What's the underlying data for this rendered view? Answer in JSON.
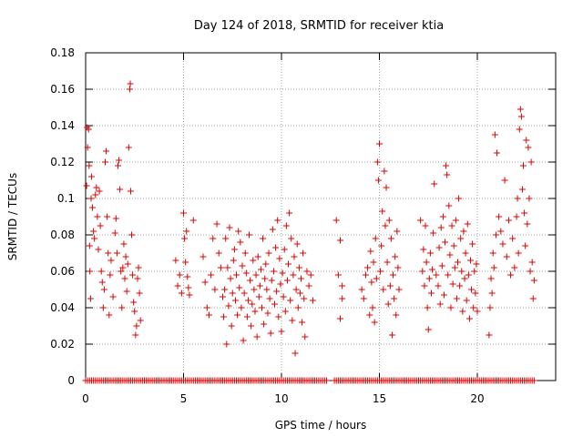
{
  "chart_data": {
    "type": "scatter",
    "title": "Day 124 of 2018, SRMTID for receiver ktia",
    "xlabel": "GPS time / hours",
    "ylabel": "SRMTID / TECUs",
    "xlim": [
      0,
      24
    ],
    "ylim": [
      0,
      0.18
    ],
    "xticks": [
      0,
      5,
      10,
      15,
      20
    ],
    "xtick_labels": [
      "0",
      "5",
      "10",
      "15",
      "20"
    ],
    "yticks": [
      0,
      0.02,
      0.04,
      0.06,
      0.08,
      0.1,
      0.12,
      0.14,
      0.16,
      0.18
    ],
    "ytick_labels": [
      "0",
      "0.02",
      "0.04",
      "0.06",
      "0.08",
      "0.1",
      "0.12",
      "0.14",
      "0.16",
      "0.18"
    ],
    "grid": true,
    "marker": "+",
    "color": "#dd0000",
    "series": [
      {
        "name": "SRMTID",
        "points": [
          [
            0.05,
            0.107
          ],
          [
            0.08,
            0.139
          ],
          [
            0.1,
            0.128
          ],
          [
            0.15,
            0.138
          ],
          [
            0.18,
            0.118
          ],
          [
            0.2,
            0.074
          ],
          [
            0.22,
            0.06
          ],
          [
            0.25,
            0.045
          ],
          [
            0.28,
            0.1
          ],
          [
            0.3,
            0.112
          ],
          [
            0.35,
            0.095
          ],
          [
            0.4,
            0.082
          ],
          [
            0.45,
            0.078
          ],
          [
            0.5,
            0.102
          ],
          [
            0.55,
            0.106
          ],
          [
            0.6,
            0.09
          ],
          [
            0.65,
            0.072
          ],
          [
            0.7,
            0.104
          ],
          [
            0.75,
            0.085
          ],
          [
            0.8,
            0.06
          ],
          [
            0.85,
            0.054
          ],
          [
            0.9,
            0.04
          ],
          [
            0.95,
            0.05
          ],
          [
            1.0,
            0.12
          ],
          [
            1.05,
            0.126
          ],
          [
            1.1,
            0.09
          ],
          [
            1.15,
            0.07
          ],
          [
            1.2,
            0.036
          ],
          [
            1.25,
            0.058
          ],
          [
            1.3,
            0.066
          ],
          [
            1.4,
            0.046
          ],
          [
            1.5,
            0.081
          ],
          [
            1.55,
            0.089
          ],
          [
            1.6,
            0.07
          ],
          [
            1.65,
            0.118
          ],
          [
            1.7,
            0.121
          ],
          [
            1.75,
            0.105
          ],
          [
            1.8,
            0.06
          ],
          [
            1.85,
            0.04
          ],
          [
            1.9,
            0.062
          ],
          [
            1.95,
            0.075
          ],
          [
            2.0,
            0.056
          ],
          [
            2.05,
            0.068
          ],
          [
            2.1,
            0.049
          ],
          [
            2.15,
            0.064
          ],
          [
            2.2,
            0.128
          ],
          [
            2.25,
            0.16
          ],
          [
            2.28,
            0.163
          ],
          [
            2.3,
            0.104
          ],
          [
            2.35,
            0.08
          ],
          [
            2.4,
            0.058
          ],
          [
            2.45,
            0.043
          ],
          [
            2.5,
            0.038
          ],
          [
            2.55,
            0.025
          ],
          [
            2.6,
            0.03
          ],
          [
            2.65,
            0.056
          ],
          [
            2.7,
            0.062
          ],
          [
            2.75,
            0.048
          ],
          [
            2.8,
            0.033
          ],
          [
            4.6,
            0.066
          ],
          [
            4.7,
            0.052
          ],
          [
            4.8,
            0.058
          ],
          [
            4.9,
            0.048
          ],
          [
            5.0,
            0.092
          ],
          [
            5.05,
            0.078
          ],
          [
            5.1,
            0.065
          ],
          [
            5.15,
            0.082
          ],
          [
            5.2,
            0.057
          ],
          [
            5.25,
            0.051
          ],
          [
            5.3,
            0.047
          ],
          [
            5.5,
            0.088
          ],
          [
            6.0,
            0.068
          ],
          [
            6.1,
            0.054
          ],
          [
            6.2,
            0.04
          ],
          [
            6.3,
            0.036
          ],
          [
            6.4,
            0.058
          ],
          [
            6.5,
            0.078
          ],
          [
            6.6,
            0.05
          ],
          [
            6.7,
            0.086
          ],
          [
            6.8,
            0.07
          ],
          [
            6.9,
            0.062
          ],
          [
            7.0,
            0.046
          ],
          [
            7.05,
            0.035
          ],
          [
            7.1,
            0.05
          ],
          [
            7.15,
            0.078
          ],
          [
            7.2,
            0.02
          ],
          [
            7.25,
            0.062
          ],
          [
            7.3,
            0.041
          ],
          [
            7.35,
            0.084
          ],
          [
            7.4,
            0.056
          ],
          [
            7.45,
            0.03
          ],
          [
            7.5,
            0.048
          ],
          [
            7.55,
            0.066
          ],
          [
            7.6,
            0.072
          ],
          [
            7.65,
            0.044
          ],
          [
            7.7,
            0.058
          ],
          [
            7.75,
            0.036
          ],
          [
            7.8,
            0.082
          ],
          [
            7.85,
            0.051
          ],
          [
            7.9,
            0.076
          ],
          [
            7.95,
            0.04
          ],
          [
            8.0,
            0.063
          ],
          [
            8.05,
            0.022
          ],
          [
            8.1,
            0.048
          ],
          [
            8.15,
            0.07
          ],
          [
            8.2,
            0.059
          ],
          [
            8.25,
            0.035
          ],
          [
            8.3,
            0.044
          ],
          [
            8.35,
            0.08
          ],
          [
            8.4,
            0.055
          ],
          [
            8.45,
            0.03
          ],
          [
            8.5,
            0.042
          ],
          [
            8.55,
            0.066
          ],
          [
            8.6,
            0.05
          ],
          [
            8.65,
            0.038
          ],
          [
            8.7,
            0.058
          ],
          [
            8.75,
            0.024
          ],
          [
            8.8,
            0.068
          ],
          [
            8.85,
            0.046
          ],
          [
            8.9,
            0.052
          ],
          [
            8.95,
            0.061
          ],
          [
            9.0,
            0.04
          ],
          [
            9.05,
            0.078
          ],
          [
            9.1,
            0.031
          ],
          [
            9.15,
            0.056
          ],
          [
            9.2,
            0.064
          ],
          [
            9.25,
            0.05
          ],
          [
            9.3,
            0.037
          ],
          [
            9.35,
            0.07
          ],
          [
            9.4,
            0.045
          ],
          [
            9.45,
            0.026
          ],
          [
            9.5,
            0.055
          ],
          [
            9.55,
            0.083
          ],
          [
            9.6,
            0.06
          ],
          [
            9.65,
            0.042
          ],
          [
            9.7,
            0.073
          ],
          [
            9.75,
            0.049
          ],
          [
            9.8,
            0.088
          ],
          [
            9.85,
            0.035
          ],
          [
            9.9,
            0.067
          ],
          [
            9.95,
            0.053
          ],
          [
            10.0,
            0.027
          ],
          [
            10.05,
            0.059
          ],
          [
            10.1,
            0.046
          ],
          [
            10.15,
            0.072
          ],
          [
            10.2,
            0.038
          ],
          [
            10.25,
            0.085
          ],
          [
            10.3,
            0.055
          ],
          [
            10.35,
            0.064
          ],
          [
            10.4,
            0.092
          ],
          [
            10.45,
            0.044
          ],
          [
            10.5,
            0.078
          ],
          [
            10.55,
            0.033
          ],
          [
            10.6,
            0.058
          ],
          [
            10.65,
            0.068
          ],
          [
            10.7,
            0.015
          ],
          [
            10.75,
            0.05
          ],
          [
            10.8,
            0.075
          ],
          [
            10.85,
            0.04
          ],
          [
            10.9,
            0.062
          ],
          [
            10.95,
            0.048
          ],
          [
            11.0,
            0.056
          ],
          [
            11.05,
            0.032
          ],
          [
            11.1,
            0.07
          ],
          [
            11.15,
            0.045
          ],
          [
            11.2,
            0.024
          ],
          [
            11.3,
            0.06
          ],
          [
            11.4,
            0.052
          ],
          [
            11.5,
            0.058
          ],
          [
            11.6,
            0.044
          ],
          [
            12.8,
            0.088
          ],
          [
            12.9,
            0.058
          ],
          [
            13.0,
            0.077
          ],
          [
            13.1,
            0.052
          ],
          [
            13.0,
            0.034
          ],
          [
            13.1,
            0.045
          ],
          [
            14.1,
            0.05
          ],
          [
            14.2,
            0.045
          ],
          [
            14.3,
            0.058
          ],
          [
            14.4,
            0.062
          ],
          [
            14.5,
            0.036
          ],
          [
            14.55,
            0.071
          ],
          [
            14.6,
            0.054
          ],
          [
            14.65,
            0.04
          ],
          [
            14.7,
            0.065
          ],
          [
            14.75,
            0.032
          ],
          [
            14.8,
            0.078
          ],
          [
            14.85,
            0.056
          ],
          [
            14.9,
            0.12
          ],
          [
            14.95,
            0.11
          ],
          [
            15.0,
            0.13
          ],
          [
            15.05,
            0.06
          ],
          [
            15.1,
            0.074
          ],
          [
            15.15,
            0.093
          ],
          [
            15.2,
            0.05
          ],
          [
            15.25,
            0.115
          ],
          [
            15.3,
            0.085
          ],
          [
            15.35,
            0.106
          ],
          [
            15.4,
            0.065
          ],
          [
            15.45,
            0.042
          ],
          [
            15.5,
            0.088
          ],
          [
            15.55,
            0.052
          ],
          [
            15.6,
            0.078
          ],
          [
            15.65,
            0.025
          ],
          [
            15.7,
            0.058
          ],
          [
            15.75,
            0.045
          ],
          [
            15.8,
            0.068
          ],
          [
            15.85,
            0.036
          ],
          [
            15.9,
            0.082
          ],
          [
            15.95,
            0.062
          ],
          [
            16.0,
            0.05
          ],
          [
            17.1,
            0.088
          ],
          [
            17.2,
            0.06
          ],
          [
            17.25,
            0.072
          ],
          [
            17.3,
            0.052
          ],
          [
            17.35,
            0.085
          ],
          [
            17.4,
            0.065
          ],
          [
            17.45,
            0.04
          ],
          [
            17.5,
            0.028
          ],
          [
            17.55,
            0.056
          ],
          [
            17.6,
            0.07
          ],
          [
            17.65,
            0.048
          ],
          [
            17.7,
            0.061
          ],
          [
            17.75,
            0.081
          ],
          [
            17.8,
            0.108
          ],
          [
            17.9,
            0.058
          ],
          [
            18.0,
            0.052
          ],
          [
            18.05,
            0.073
          ],
          [
            18.1,
            0.042
          ],
          [
            18.15,
            0.084
          ],
          [
            18.2,
            0.063
          ],
          [
            18.25,
            0.09
          ],
          [
            18.3,
            0.047
          ],
          [
            18.35,
            0.076
          ],
          [
            18.4,
            0.118
          ],
          [
            18.45,
            0.113
          ],
          [
            18.5,
            0.058
          ],
          [
            18.55,
            0.096
          ],
          [
            18.6,
            0.069
          ],
          [
            18.65,
            0.04
          ],
          [
            18.7,
            0.085
          ],
          [
            18.75,
            0.053
          ],
          [
            18.8,
            0.074
          ],
          [
            18.85,
            0.062
          ],
          [
            18.9,
            0.088
          ],
          [
            18.95,
            0.045
          ],
          [
            19.0,
            0.065
          ],
          [
            19.05,
            0.1
          ],
          [
            19.1,
            0.052
          ],
          [
            19.15,
            0.078
          ],
          [
            19.2,
            0.06
          ],
          [
            19.25,
            0.038
          ],
          [
            19.3,
            0.082
          ],
          [
            19.35,
            0.056
          ],
          [
            19.4,
            0.07
          ],
          [
            19.45,
            0.044
          ],
          [
            19.5,
            0.086
          ],
          [
            19.55,
            0.058
          ],
          [
            19.6,
            0.034
          ],
          [
            19.65,
            0.066
          ],
          [
            19.7,
            0.05
          ],
          [
            19.75,
            0.075
          ],
          [
            19.8,
            0.04
          ],
          [
            19.85,
            0.06
          ],
          [
            19.9,
            0.048
          ],
          [
            19.95,
            0.064
          ],
          [
            20.0,
            0.038
          ],
          [
            20.6,
            0.025
          ],
          [
            20.65,
            0.04
          ],
          [
            20.7,
            0.056
          ],
          [
            20.75,
            0.048
          ],
          [
            20.8,
            0.07
          ],
          [
            20.85,
            0.062
          ],
          [
            20.9,
            0.135
          ],
          [
            20.95,
            0.08
          ],
          [
            21.0,
            0.125
          ],
          [
            21.1,
            0.09
          ],
          [
            21.2,
            0.082
          ],
          [
            21.3,
            0.075
          ],
          [
            21.4,
            0.11
          ],
          [
            21.5,
            0.068
          ],
          [
            21.6,
            0.088
          ],
          [
            21.7,
            0.058
          ],
          [
            21.8,
            0.078
          ],
          [
            21.9,
            0.062
          ],
          [
            22.0,
            0.09
          ],
          [
            22.05,
            0.1
          ],
          [
            22.1,
            0.07
          ],
          [
            22.15,
            0.138
          ],
          [
            22.2,
            0.149
          ],
          [
            22.25,
            0.145
          ],
          [
            22.3,
            0.105
          ],
          [
            22.35,
            0.118
          ],
          [
            22.4,
            0.092
          ],
          [
            22.45,
            0.074
          ],
          [
            22.5,
            0.132
          ],
          [
            22.55,
            0.086
          ],
          [
            22.6,
            0.128
          ],
          [
            22.65,
            0.1
          ],
          [
            22.7,
            0.06
          ],
          [
            22.75,
            0.12
          ],
          [
            22.8,
            0.065
          ],
          [
            22.85,
            0.045
          ],
          [
            22.9,
            0.055
          ]
        ]
      }
    ],
    "zero_band_ranges": [
      [
        0,
        12.3
      ],
      [
        12.7,
        22.9
      ]
    ]
  }
}
